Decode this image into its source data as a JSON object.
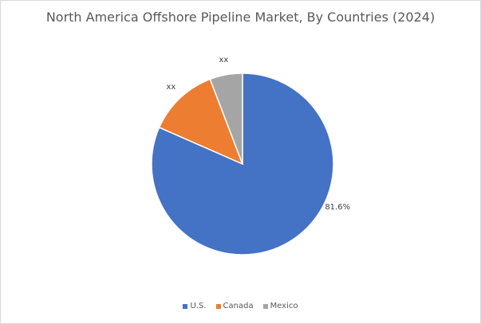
{
  "chart_data": {
    "type": "pie",
    "title": "North America Offshore Pipeline Market, By Countries (2024)",
    "slices": [
      {
        "name": "U.S.",
        "value": 81.6,
        "label": "81.6%",
        "color": "#4472C4"
      },
      {
        "name": "Canada",
        "value": 12.6,
        "label": "xx",
        "color": "#ED7D31"
      },
      {
        "name": "Mexico",
        "value": 5.8,
        "label": "xx",
        "color": "#A5A5A5"
      }
    ],
    "legend_position": "bottom"
  }
}
